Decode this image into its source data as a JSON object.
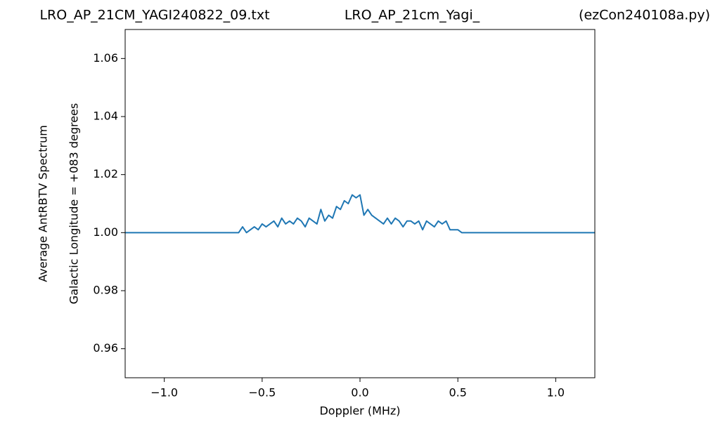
{
  "chart_data": {
    "type": "line",
    "titles": [
      "LRO_AP_21CM_YAGI240822_09.txt",
      "LRO_AP_21cm_Yagi_",
      "(ezCon240108a.py)"
    ],
    "xlabel": "Doppler (MHz)",
    "ylabel": [
      "Average AntRBTV Spectrum",
      "Galactic Longitude = +083 degrees"
    ],
    "x": [
      -1.2,
      -0.62,
      -0.6,
      -0.58,
      -0.56,
      -0.54,
      -0.52,
      -0.5,
      -0.48,
      -0.46,
      -0.44,
      -0.42,
      -0.4,
      -0.38,
      -0.36,
      -0.34,
      -0.32,
      -0.3,
      -0.28,
      -0.26,
      -0.24,
      -0.22,
      -0.2,
      -0.18,
      -0.16,
      -0.14,
      -0.12,
      -0.1,
      -0.08,
      -0.06,
      -0.04,
      -0.02,
      0.0,
      0.02,
      0.04,
      0.06,
      0.08,
      0.1,
      0.12,
      0.14,
      0.16,
      0.18,
      0.2,
      0.22,
      0.24,
      0.26,
      0.28,
      0.3,
      0.32,
      0.34,
      0.36,
      0.38,
      0.4,
      0.42,
      0.44,
      0.46,
      0.48,
      0.5,
      0.52,
      1.2
    ],
    "series": [
      {
        "color": "#1f77b4",
        "values": [
          1.0,
          1.0,
          1.002,
          1.0,
          1.001,
          1.002,
          1.001,
          1.003,
          1.002,
          1.003,
          1.004,
          1.002,
          1.005,
          1.003,
          1.004,
          1.003,
          1.005,
          1.004,
          1.002,
          1.005,
          1.004,
          1.003,
          1.008,
          1.004,
          1.006,
          1.005,
          1.009,
          1.008,
          1.011,
          1.01,
          1.013,
          1.012,
          1.013,
          1.006,
          1.008,
          1.006,
          1.005,
          1.004,
          1.003,
          1.005,
          1.003,
          1.005,
          1.004,
          1.002,
          1.004,
          1.004,
          1.003,
          1.004,
          1.001,
          1.004,
          1.003,
          1.002,
          1.004,
          1.003,
          1.004,
          1.001,
          1.001,
          1.001,
          1.0,
          1.0
        ]
      }
    ],
    "xlim": [
      -1.2,
      1.2
    ],
    "ylim": [
      0.95,
      1.07
    ],
    "xticks": [
      {
        "value": -1.0,
        "label": "−1.0"
      },
      {
        "value": -0.5,
        "label": "−0.5"
      },
      {
        "value": 0,
        "label": "0.0"
      },
      0.5,
      {
        "value": 1.0,
        "label": "1.0"
      }
    ],
    "yticks": [
      0.96,
      0.98,
      {
        "value": 1.0,
        "label": "1.00"
      },
      1.02,
      1.04,
      1.06
    ]
  }
}
